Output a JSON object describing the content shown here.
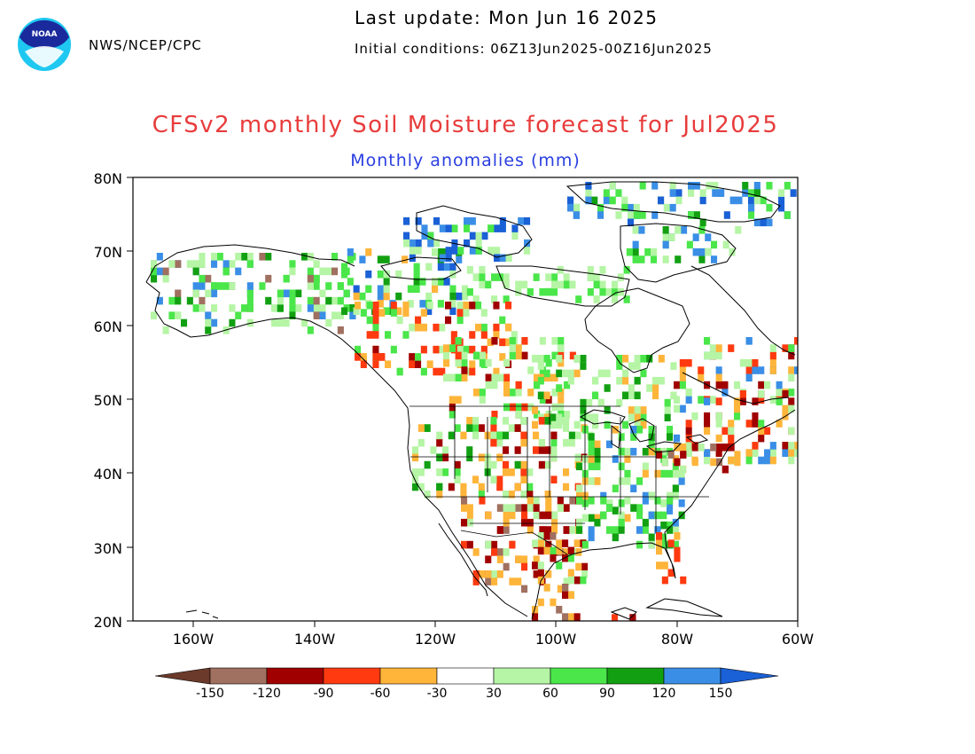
{
  "header": {
    "org": "NWS/NCEP/CPC",
    "last_update": "Last update: Mon Jun 16 2025",
    "initial_conditions": "Initial conditions: 06Z13Jun2025-00Z16Jun2025",
    "title": "CFSv2 monthly Soil Moisture forecast for Jul2025",
    "subtitle": "Monthly anomalies (mm)",
    "logo_text": "NOAA"
  },
  "map": {
    "projection": "lat-lon",
    "lon_range": [
      -170,
      -60
    ],
    "lat_range": [
      20,
      80
    ],
    "y_ticks": [
      "80N",
      "70N",
      "60N",
      "50N",
      "40N",
      "30N",
      "20N"
    ],
    "x_ticks": [
      "160W",
      "140W",
      "120W",
      "100W",
      "80W",
      "60W"
    ]
  },
  "colorbar": {
    "labels": [
      "-150",
      "-120",
      "-90",
      "-60",
      "-30",
      "30",
      "60",
      "90",
      "120",
      "150"
    ],
    "colors": [
      "#6b3a2a",
      "#a07060",
      "#a00000",
      "#ff3a10",
      "#ffb53a",
      "#ffffff",
      "#b5f5a5",
      "#4ae64a",
      "#12a012",
      "#3a8ee6",
      "#1a60d6"
    ]
  }
}
